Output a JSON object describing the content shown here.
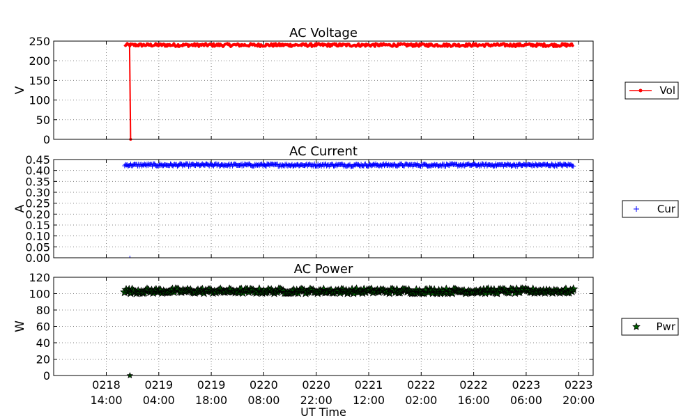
{
  "colors": {
    "voltage": "#ff0000",
    "current": "#0000ff",
    "power_fill": "#006400",
    "power_edge": "#000000",
    "grid": "#808080",
    "frame": "#000000"
  },
  "xlabel": "UT Time",
  "x_ticks": [
    {
      "line1": "0218",
      "line2": "14:00"
    },
    {
      "line1": "0219",
      "line2": "04:00"
    },
    {
      "line1": "0219",
      "line2": "18:00"
    },
    {
      "line1": "0220",
      "line2": "08:00"
    },
    {
      "line1": "0220",
      "line2": "22:00"
    },
    {
      "line1": "0221",
      "line2": "12:00"
    },
    {
      "line1": "0222",
      "line2": "02:00"
    },
    {
      "line1": "0222",
      "line2": "16:00"
    },
    {
      "line1": "0223",
      "line2": "06:00"
    },
    {
      "line1": "0223",
      "line2": "20:00"
    }
  ],
  "chart_data": [
    {
      "type": "line",
      "title": "AC Voltage",
      "ylabel": "V",
      "ylim": [
        0,
        250
      ],
      "yticks": [
        "0",
        "50",
        "100",
        "150",
        "200",
        "250"
      ],
      "grid": true,
      "legend": {
        "label": "Vol",
        "marker": "dot-line",
        "placement": "right"
      },
      "x_range_ticks": [
        -0.95,
        9.3
      ],
      "series": [
        {
          "name": "Vol",
          "x_start_tick": 0.35,
          "x_end_tick": 8.9,
          "baseline": 240,
          "noise": 4,
          "dropout": {
            "x_tick": 0.45,
            "value": 0
          }
        }
      ]
    },
    {
      "type": "scatter",
      "title": "AC Current",
      "ylabel": "A",
      "ylim": [
        0,
        0.45
      ],
      "yticks": [
        "0.00",
        "0.05",
        "0.10",
        "0.15",
        "0.20",
        "0.25",
        "0.30",
        "0.35",
        "0.40",
        "0.45"
      ],
      "grid": true,
      "legend": {
        "label": "Cur",
        "marker": "plus",
        "placement": "right"
      },
      "series": [
        {
          "name": "Cur",
          "x_start_tick": 0.35,
          "x_end_tick": 8.9,
          "baseline": 0.425,
          "noise": 0.006,
          "dropout": {
            "x_tick": 0.45,
            "value": 0
          }
        }
      ]
    },
    {
      "type": "scatter",
      "title": "AC Power",
      "ylabel": "W",
      "ylim": [
        0,
        120
      ],
      "yticks": [
        "0",
        "20",
        "40",
        "60",
        "80",
        "100",
        "120"
      ],
      "grid": true,
      "legend": {
        "label": "Pwr",
        "marker": "star",
        "placement": "right"
      },
      "series": [
        {
          "name": "Pwr",
          "x_start_tick": 0.35,
          "x_end_tick": 8.9,
          "baseline": 103,
          "noise": 2.5,
          "dropout": {
            "x_tick": 0.45,
            "value": 0
          }
        }
      ]
    }
  ]
}
